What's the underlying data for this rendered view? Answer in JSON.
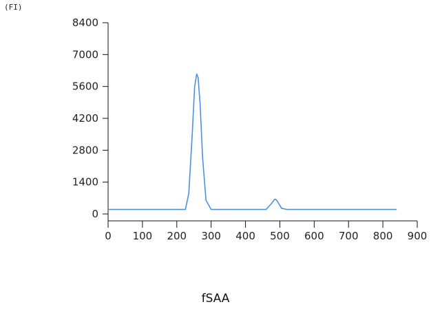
{
  "chart_data": {
    "type": "line",
    "title": "",
    "ylabel": "(FI)",
    "xlabel": "fSAA",
    "xlim": [
      0,
      900
    ],
    "ylim": [
      0,
      8400
    ],
    "x_ticks": [
      0,
      100,
      200,
      300,
      400,
      500,
      600,
      700,
      800,
      900
    ],
    "y_ticks": [
      0,
      1400,
      2800,
      4200,
      5600,
      7000,
      8400
    ],
    "grid": false,
    "legend": "none",
    "line_color": "#4a90e2",
    "series": [
      {
        "x": [
          0,
          100,
          200,
          225,
          235,
          245,
          252,
          258,
          262,
          268,
          275,
          285,
          300,
          400,
          460,
          475,
          485,
          490,
          495,
          505,
          520,
          600,
          700,
          800,
          840
        ],
        "y": [
          200,
          200,
          200,
          200,
          900,
          3500,
          5600,
          6150,
          6000,
          4800,
          2500,
          600,
          200,
          200,
          200,
          450,
          650,
          620,
          500,
          250,
          200,
          200,
          200,
          200,
          200
        ]
      }
    ]
  }
}
